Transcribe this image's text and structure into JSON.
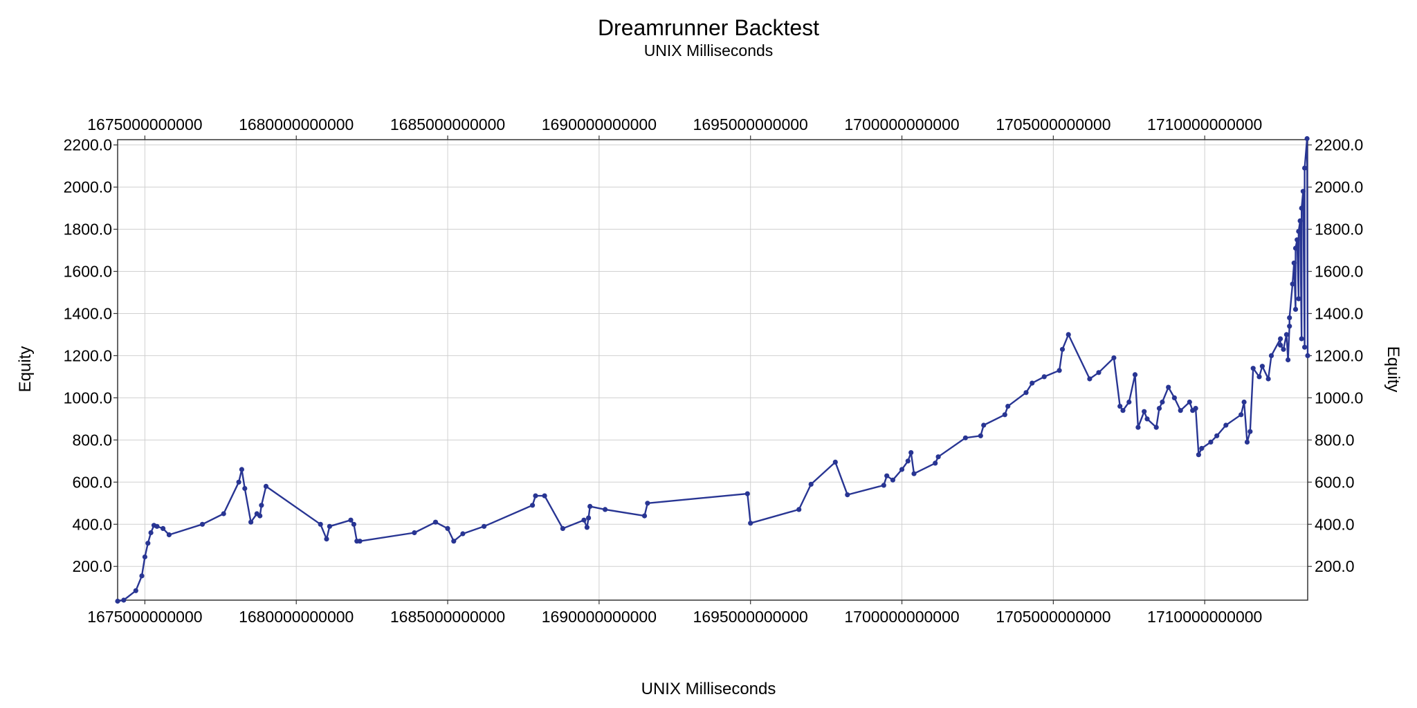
{
  "chart_data": {
    "type": "line",
    "title": "Dreamrunner Backtest",
    "subtitle": "UNIX Milliseconds",
    "xlabel": "UNIX Milliseconds",
    "ylabel": "Equity",
    "ylabel_right": "Equity",
    "xlim": [
      1674100000000,
      1713400000000
    ],
    "ylim": [
      40,
      2225
    ],
    "grid": true,
    "legend": "none",
    "line_color": "#283593",
    "x_ticks": [
      1675000000000,
      1680000000000,
      1685000000000,
      1690000000000,
      1695000000000,
      1700000000000,
      1705000000000,
      1710000000000
    ],
    "x_tick_labels": [
      "1675000000000",
      "1680000000000",
      "1685000000000",
      "1690000000000",
      "1695000000000",
      "1700000000000",
      "1705000000000",
      "1710000000000"
    ],
    "y_ticks": [
      200,
      400,
      600,
      800,
      1000,
      1200,
      1400,
      1600,
      1800,
      2000,
      2200
    ],
    "y_tick_labels": [
      "200.0",
      "400.0",
      "600.0",
      "800.0",
      "1000.0",
      "1200.0",
      "1400.0",
      "1600.0",
      "1800.0",
      "2000.0",
      "2200.0"
    ],
    "series": [
      {
        "x": [
          1674100000000,
          1674300000000,
          1674700000000,
          1674900000000,
          1675000000000,
          1675100000000,
          1675200000000,
          1675300000000,
          1675400000000,
          1675600000000,
          1675800000000,
          1676900000000,
          1677600000000,
          1678100000000,
          1678200000000,
          1678300000000,
          1678500000000,
          1678700000000,
          1678800000000,
          1678850000000,
          1679000000000,
          1680800000000,
          1681000000000,
          1681100000000,
          1681800000000,
          1681900000000,
          1682000000000,
          1682100000000,
          1683900000000,
          1684600000000,
          1685000000000,
          1685200000000,
          1685500000000,
          1686200000000,
          1687800000000,
          1687900000000,
          1688200000000,
          1688800000000,
          1689500000000,
          1689600000000,
          1689650000000,
          1689700000000,
          1690200000000,
          1691500000000,
          1691600000000,
          1694900000000,
          1695000000000,
          1696600000000,
          1697000000000,
          1697800000000,
          1698200000000,
          1699400000000,
          1699500000000,
          1699700000000,
          1700000000000,
          1700200000000,
          1700300000000,
          1700400000000,
          1701100000000,
          1701200000000,
          1702100000000,
          1702600000000,
          1702700000000,
          1703400000000,
          1703500000000,
          1704100000000,
          1704300000000,
          1704700000000,
          1705200000000,
          1705300000000,
          1705500000000,
          1706200000000,
          1706500000000,
          1707000000000,
          1707200000000,
          1707300000000,
          1707500000000,
          1707700000000,
          1707800000000,
          1708000000000,
          1708100000000,
          1708400000000,
          1708500000000,
          1708600000000,
          1708800000000,
          1709000000000,
          1709200000000,
          1709500000000,
          1709600000000,
          1709700000000,
          1709800000000,
          1709900000000,
          1710200000000,
          1710400000000,
          1710700000000,
          1711200000000,
          1711300000000,
          1711400000000,
          1711500000000,
          1711600000000,
          1711800000000,
          1711900000000,
          1712100000000,
          1712200000000,
          1712500000000,
          1712800000000,
          1713000000000,
          1713100000000,
          1713200000000,
          1713300000000,
          1713400000000
        ],
        "y": [
          35,
          40,
          85,
          155,
          245,
          310,
          360,
          395,
          390,
          380,
          350,
          400,
          450,
          600,
          660,
          570,
          410,
          450,
          440,
          490,
          580,
          400,
          330,
          390,
          420,
          400,
          320,
          320,
          360,
          410,
          380,
          320,
          355,
          390,
          490,
          535,
          535,
          380,
          420,
          385,
          430,
          485,
          470,
          440,
          500,
          545,
          405,
          470,
          590,
          695,
          540,
          585,
          630,
          610,
          660,
          700,
          740,
          640,
          690,
          720,
          810,
          820,
          870,
          920,
          960,
          1025,
          1070,
          1100,
          1130,
          1230,
          1300,
          1090,
          1120,
          1190,
          960,
          940,
          980,
          1110,
          860,
          935,
          900,
          860,
          950,
          980,
          1050,
          1000,
          940,
          980,
          940,
          950,
          730,
          760,
          790,
          820,
          870,
          920,
          980,
          790,
          840,
          1140,
          1100,
          1150,
          1090,
          1200,
          1280,
          1340,
          1420,
          1470,
          1280,
          1240,
          1200
        ]
      }
    ],
    "points_extra": [
      [
        1712500000000,
        1250
      ],
      [
        1712600000000,
        1230
      ],
      [
        1712700000000,
        1300
      ],
      [
        1712750000000,
        1180
      ],
      [
        1712800000000,
        1380
      ],
      [
        1712900000000,
        1540
      ],
      [
        1712950000000,
        1640
      ],
      [
        1713000000000,
        1710
      ],
      [
        1713050000000,
        1750
      ],
      [
        1713100000000,
        1790
      ],
      [
        1713150000000,
        1840
      ],
      [
        1713200000000,
        1900
      ],
      [
        1713250000000,
        1980
      ],
      [
        1713300000000,
        2090
      ],
      [
        1713380000000,
        2230
      ]
    ]
  }
}
